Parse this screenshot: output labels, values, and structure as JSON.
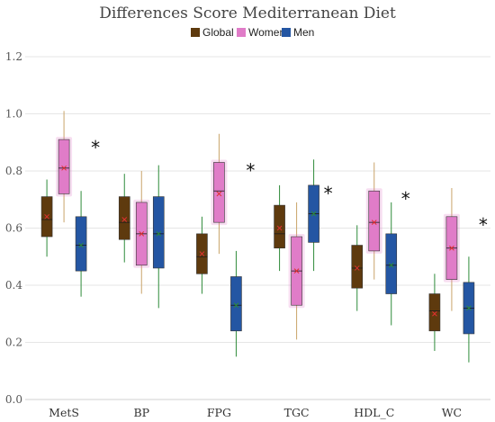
{
  "chart_data": {
    "type": "boxplot",
    "title": "Differences Score Mediterranean Diet",
    "xlabel": "",
    "ylabel": "",
    "ylim": [
      0,
      1.2
    ],
    "yticks": [
      "0.0",
      "0.2",
      "0.4",
      "0.6",
      "0.8",
      "1.0",
      "1.2"
    ],
    "grid": "horizontal",
    "legend_position": "top-center",
    "categories": [
      "MetS",
      "BP",
      "FPG",
      "TGC",
      "HDL_C",
      "WC"
    ],
    "significance": [
      "*",
      "",
      "*",
      "*",
      "*",
      "*"
    ],
    "series": [
      {
        "name": "Global",
        "color": "#5e3a0e",
        "whisker_color": "#2e8b3a",
        "mean_marker_color": "#e03030",
        "boxes": [
          {
            "min": 0.5,
            "q1": 0.57,
            "median": 0.63,
            "q3": 0.71,
            "max": 0.77,
            "mean": 0.64
          },
          {
            "min": 0.48,
            "q1": 0.56,
            "median": 0.62,
            "q3": 0.71,
            "max": 0.79,
            "mean": 0.63
          },
          {
            "min": 0.37,
            "q1": 0.44,
            "median": 0.5,
            "q3": 0.58,
            "max": 0.64,
            "mean": 0.51
          },
          {
            "min": 0.45,
            "q1": 0.53,
            "median": 0.58,
            "q3": 0.68,
            "max": 0.75,
            "mean": 0.6
          },
          {
            "min": 0.31,
            "q1": 0.39,
            "median": 0.46,
            "q3": 0.54,
            "max": 0.61,
            "mean": 0.46
          },
          {
            "min": 0.17,
            "q1": 0.24,
            "median": 0.31,
            "q3": 0.37,
            "max": 0.44,
            "mean": 0.3
          }
        ]
      },
      {
        "name": "Women",
        "color": "#e07cc8",
        "whisker_color": "#c9a46a",
        "mean_marker_color": "#e03030",
        "boxes": [
          {
            "min": 0.62,
            "q1": 0.72,
            "median": 0.81,
            "q3": 0.91,
            "max": 1.01,
            "mean": 0.81
          },
          {
            "min": 0.37,
            "q1": 0.47,
            "median": 0.58,
            "q3": 0.69,
            "max": 0.8,
            "mean": 0.58
          },
          {
            "min": 0.51,
            "q1": 0.62,
            "median": 0.73,
            "q3": 0.83,
            "max": 0.93,
            "mean": 0.72
          },
          {
            "min": 0.21,
            "q1": 0.33,
            "median": 0.45,
            "q3": 0.57,
            "max": 0.69,
            "mean": 0.45
          },
          {
            "min": 0.42,
            "q1": 0.52,
            "median": 0.62,
            "q3": 0.73,
            "max": 0.83,
            "mean": 0.62
          },
          {
            "min": 0.31,
            "q1": 0.42,
            "median": 0.53,
            "q3": 0.64,
            "max": 0.74,
            "mean": 0.53
          }
        ]
      },
      {
        "name": "Men",
        "color": "#2456a3",
        "whisker_color": "#2e8b3a",
        "mean_marker_color": "#2e8b3a",
        "boxes": [
          {
            "min": 0.36,
            "q1": 0.45,
            "median": 0.54,
            "q3": 0.64,
            "max": 0.73,
            "mean": 0.54
          },
          {
            "min": 0.32,
            "q1": 0.46,
            "median": 0.58,
            "q3": 0.71,
            "max": 0.82,
            "mean": 0.58
          },
          {
            "min": 0.15,
            "q1": 0.24,
            "median": 0.33,
            "q3": 0.43,
            "max": 0.52,
            "mean": 0.33
          },
          {
            "min": 0.45,
            "q1": 0.55,
            "median": 0.65,
            "q3": 0.75,
            "max": 0.84,
            "mean": 0.65
          },
          {
            "min": 0.26,
            "q1": 0.37,
            "median": 0.47,
            "q3": 0.58,
            "max": 0.69,
            "mean": 0.47
          },
          {
            "min": 0.13,
            "q1": 0.23,
            "median": 0.32,
            "q3": 0.41,
            "max": 0.5,
            "mean": 0.32
          }
        ]
      }
    ]
  }
}
